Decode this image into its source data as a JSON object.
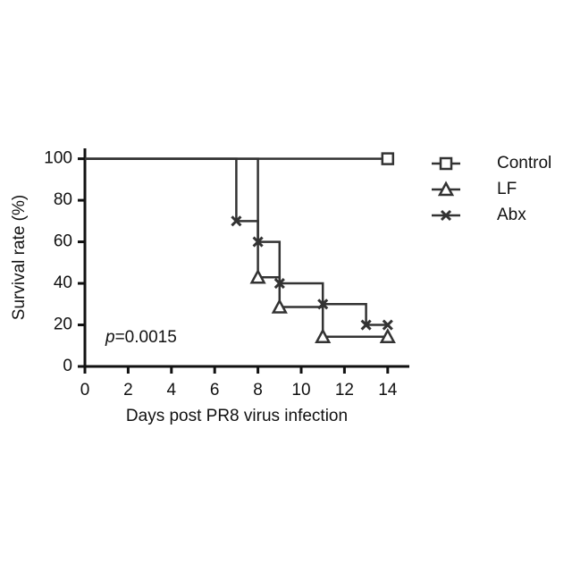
{
  "chart_data": {
    "type": "step",
    "xlabel": "Days post PR8 virus infection",
    "ylabel": "Survival rate (%)",
    "annotation": {
      "italic": "p",
      "text": "=0.0015"
    },
    "xlim": [
      0,
      15
    ],
    "xticks": [
      0,
      2,
      4,
      6,
      8,
      10,
      12,
      14
    ],
    "ylim": [
      0,
      105
    ],
    "yticks": [
      0,
      20,
      40,
      60,
      80,
      100
    ],
    "legend": "right",
    "series": [
      {
        "name": "Control",
        "color": "#333333",
        "marker": "square",
        "x": [
          0,
          14
        ],
        "values": [
          100,
          100
        ]
      },
      {
        "name": "LF",
        "color": "#333333",
        "marker": "triangle",
        "x": [
          0,
          8,
          9,
          11,
          14
        ],
        "values": [
          100,
          42.9,
          28.6,
          14.3,
          14.3
        ]
      },
      {
        "name": "Abx",
        "color": "#333333",
        "marker": "cross",
        "x": [
          0,
          7,
          8,
          9,
          11,
          13,
          14
        ],
        "values": [
          100,
          70,
          60,
          40,
          30,
          20,
          20
        ]
      }
    ]
  }
}
